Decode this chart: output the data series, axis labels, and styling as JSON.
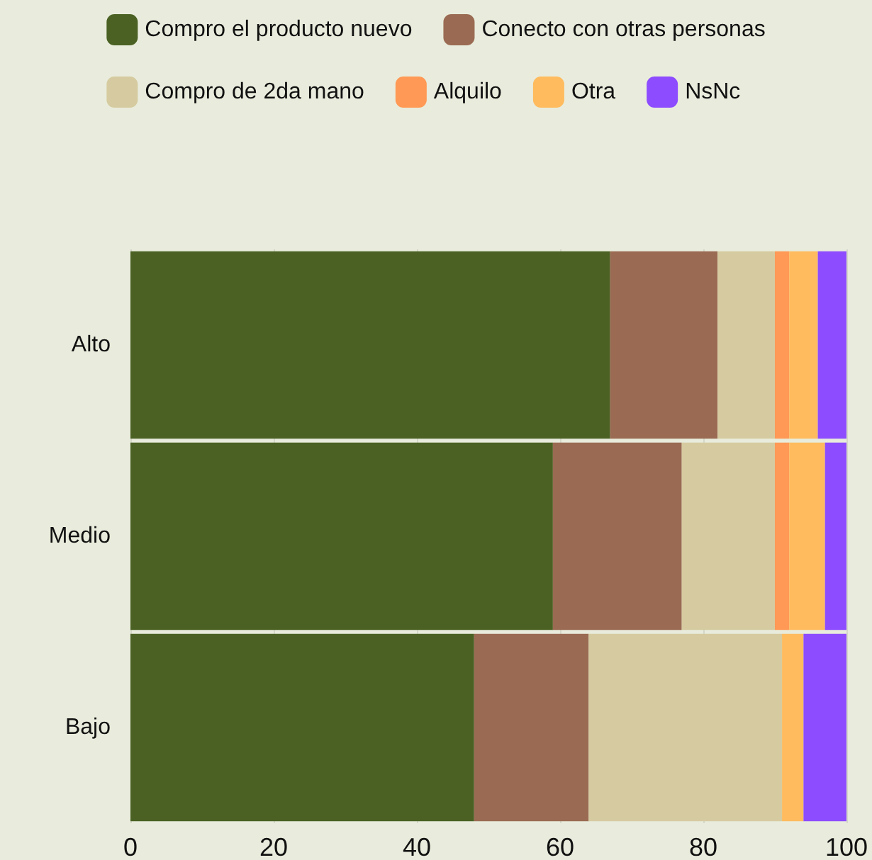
{
  "chart_data": {
    "type": "bar",
    "orientation": "horizontal",
    "stacked": true,
    "categories": [
      "Alto",
      "Medio",
      "Bajo"
    ],
    "series": [
      {
        "name": "Compro el producto nuevo",
        "color": "#4a6123",
        "values": [
          67,
          59,
          48
        ]
      },
      {
        "name": "Conecto con otras personas",
        "color": "#9a6a52",
        "values": [
          15,
          18,
          16
        ]
      },
      {
        "name": "Compro de 2da mano",
        "color": "#d6cba0",
        "values": [
          8,
          13,
          27
        ]
      },
      {
        "name": "Alquilo",
        "color": "#ff9955",
        "values": [
          2,
          2,
          0
        ]
      },
      {
        "name": "Otra",
        "color": "#ffbb5e",
        "values": [
          4,
          5,
          3
        ]
      },
      {
        "name": "NsNc",
        "color": "#8d4cff",
        "values": [
          4,
          3,
          6
        ]
      }
    ],
    "xlim": [
      0,
      100
    ],
    "xticks": [
      0,
      20,
      40,
      60,
      80,
      100
    ],
    "grid": "x",
    "legend": "top"
  }
}
